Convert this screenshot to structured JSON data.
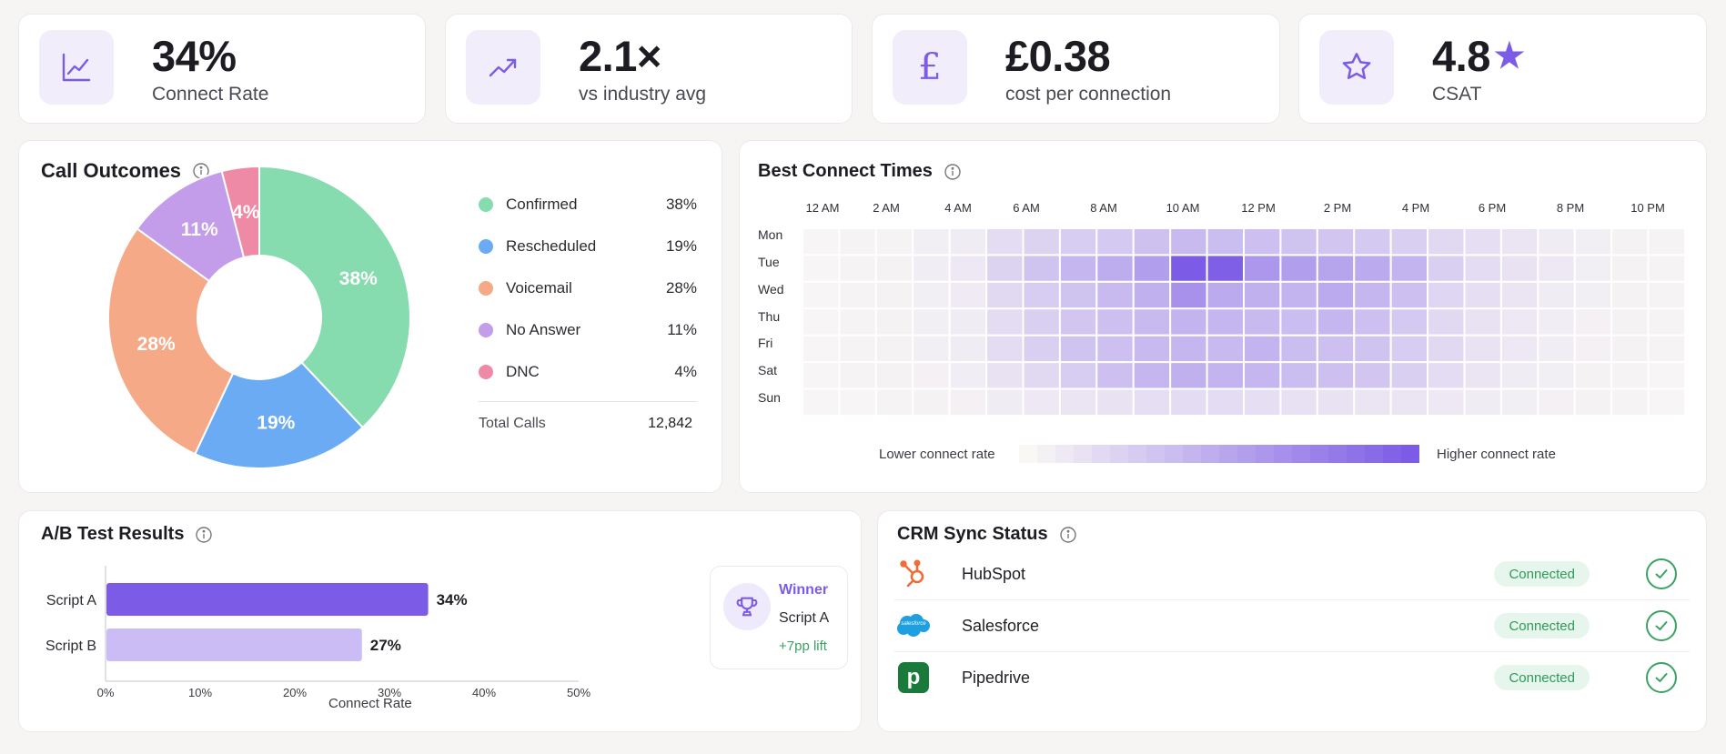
{
  "kpis": [
    {
      "value": "34%",
      "label": "Connect Rate",
      "icon": "line-chart-icon"
    },
    {
      "value": "2.1×",
      "label": "vs industry avg",
      "icon": "trending-up-icon"
    },
    {
      "value": "£0.38",
      "label": "cost per connection",
      "icon": "pound-icon"
    },
    {
      "value": "4.8",
      "value_suffix": "★",
      "label": "CSAT",
      "icon": "star-icon"
    }
  ],
  "call_outcomes": {
    "title": "Call Outcomes",
    "legend": [
      {
        "label": "Confirmed",
        "pct": "38%",
        "color": "#86dcae"
      },
      {
        "label": "Rescheduled",
        "pct": "19%",
        "color": "#6aabf3"
      },
      {
        "label": "Voicemail",
        "pct": "28%",
        "color": "#f5a986"
      },
      {
        "label": "No Answer",
        "pct": "11%",
        "color": "#c39de9"
      },
      {
        "label": "DNC",
        "pct": "4%",
        "color": "#ee89a6"
      }
    ],
    "total_label": "Total Calls",
    "total_value": "12,842"
  },
  "best_connect_times": {
    "title": "Best Connect Times",
    "hours": [
      "12 AM",
      "2 AM",
      "4 AM",
      "6 AM",
      "8 AM",
      "10 AM",
      "12 PM",
      "2 PM",
      "4 PM",
      "6 PM",
      "8 PM",
      "10 PM"
    ],
    "days": [
      "Mon",
      "Tue",
      "Wed",
      "Thu",
      "Fri",
      "Sat",
      "Sun"
    ],
    "legend_low": "Lower connect rate",
    "legend_high": "Higher connect rate"
  },
  "ab_test": {
    "title": "A/B Test Results",
    "xlabel": "Connect Rate",
    "winner_label": "Winner",
    "winner_script": "Script A",
    "winner_lift": "+7pp lift"
  },
  "crm_sync": {
    "title": "CRM Sync Status",
    "items": [
      {
        "name": "HubSpot",
        "status": "Connected",
        "icon": "hubspot-icon"
      },
      {
        "name": "Salesforce",
        "status": "Connected",
        "icon": "salesforce-icon",
        "logo_text": "salesforce"
      },
      {
        "name": "Pipedrive",
        "status": "Connected",
        "icon": "pipedrive-icon",
        "logo_text": "p"
      }
    ]
  },
  "colors": {
    "accent": "#7c5ce6",
    "accent_light": "#cbbcf5",
    "success": "#3aa363"
  },
  "chart_data": [
    {
      "type": "pie",
      "title": "Call Outcomes",
      "categories": [
        "Confirmed",
        "Rescheduled",
        "Voicemail",
        "No Answer",
        "DNC"
      ],
      "values": [
        38,
        19,
        28,
        11,
        4
      ],
      "labels": [
        "38%",
        "19%",
        "28%",
        "11%",
        "4%"
      ],
      "colors": [
        "#86dcae",
        "#6aabf3",
        "#f5a986",
        "#c39de9",
        "#ee89a6"
      ],
      "donut": true
    },
    {
      "type": "heatmap",
      "title": "Best Connect Times",
      "x": [
        "12 AM",
        "1 AM",
        "2 AM",
        "3 AM",
        "4 AM",
        "5 AM",
        "6 AM",
        "7 AM",
        "8 AM",
        "9 AM",
        "10 AM",
        "11 AM",
        "12 PM",
        "1 PM",
        "2 PM",
        "3 PM",
        "4 PM",
        "5 PM",
        "6 PM",
        "7 PM",
        "8 PM",
        "9 PM",
        "10 PM",
        "11 PM"
      ],
      "y": [
        "Mon",
        "Tue",
        "Wed",
        "Thu",
        "Fri",
        "Sat",
        "Sun"
      ],
      "values": [
        [
          0.02,
          0.03,
          0.03,
          0.06,
          0.08,
          0.18,
          0.24,
          0.28,
          0.3,
          0.35,
          0.4,
          0.38,
          0.36,
          0.34,
          0.32,
          0.3,
          0.26,
          0.2,
          0.16,
          0.12,
          0.08,
          0.06,
          0.04,
          0.03
        ],
        [
          0.02,
          0.03,
          0.04,
          0.07,
          0.1,
          0.24,
          0.34,
          0.42,
          0.48,
          0.58,
          1.0,
          0.98,
          0.62,
          0.58,
          0.54,
          0.5,
          0.44,
          0.26,
          0.18,
          0.14,
          0.1,
          0.06,
          0.04,
          0.03
        ],
        [
          0.02,
          0.03,
          0.04,
          0.06,
          0.09,
          0.2,
          0.28,
          0.34,
          0.4,
          0.46,
          0.66,
          0.5,
          0.46,
          0.44,
          0.5,
          0.42,
          0.36,
          0.22,
          0.16,
          0.12,
          0.08,
          0.06,
          0.04,
          0.03
        ],
        [
          0.02,
          0.03,
          0.04,
          0.06,
          0.08,
          0.18,
          0.26,
          0.32,
          0.36,
          0.4,
          0.44,
          0.42,
          0.4,
          0.38,
          0.42,
          0.36,
          0.3,
          0.2,
          0.14,
          0.1,
          0.07,
          0.05,
          0.04,
          0.03
        ],
        [
          0.02,
          0.03,
          0.04,
          0.06,
          0.08,
          0.18,
          0.26,
          0.34,
          0.36,
          0.4,
          0.42,
          0.4,
          0.44,
          0.38,
          0.36,
          0.34,
          0.28,
          0.2,
          0.14,
          0.1,
          0.07,
          0.05,
          0.04,
          0.03
        ],
        [
          0.02,
          0.03,
          0.04,
          0.05,
          0.07,
          0.14,
          0.2,
          0.28,
          0.36,
          0.42,
          0.46,
          0.44,
          0.42,
          0.38,
          0.36,
          0.32,
          0.26,
          0.18,
          0.12,
          0.08,
          0.06,
          0.04,
          0.03,
          0.02
        ],
        [
          0.02,
          0.02,
          0.03,
          0.04,
          0.05,
          0.08,
          0.1,
          0.12,
          0.14,
          0.16,
          0.18,
          0.18,
          0.16,
          0.15,
          0.14,
          0.13,
          0.12,
          0.1,
          0.08,
          0.06,
          0.05,
          0.04,
          0.03,
          0.02
        ]
      ]
    },
    {
      "type": "bar",
      "orientation": "horizontal",
      "title": "A/B Test Results",
      "categories": [
        "Script A",
        "Script B"
      ],
      "values": [
        34,
        27
      ],
      "labels": [
        "34%",
        "27%"
      ],
      "colors": [
        "#7c5ce6",
        "#cbbcf5"
      ],
      "xlabel": "Connect Rate",
      "xlim": [
        0,
        50
      ],
      "ticks": [
        "0%",
        "10%",
        "20%",
        "30%",
        "40%",
        "50%"
      ]
    }
  ]
}
